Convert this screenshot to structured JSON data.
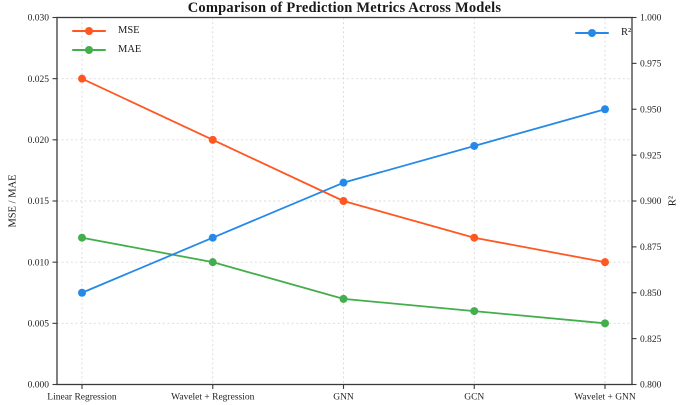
{
  "chart_data": {
    "type": "line",
    "title": "Comparison of Prediction Metrics Across Models",
    "categories": [
      "Linear Regression",
      "Wavelet + Regression",
      "GNN",
      "GCN",
      "Wavelet + GNN"
    ],
    "series": [
      {
        "name": "MSE",
        "axis": "left",
        "color": "#FF5722",
        "values": [
          0.025,
          0.02,
          0.015,
          0.012,
          0.01
        ]
      },
      {
        "name": "MAE",
        "axis": "left",
        "color": "#44AD4C",
        "values": [
          0.012,
          0.01,
          0.007,
          0.006,
          0.005
        ]
      },
      {
        "name": "R²",
        "axis": "right",
        "color": "#2489E8",
        "values": [
          0.85,
          0.88,
          0.91,
          0.93,
          0.95
        ]
      }
    ],
    "left_axis": {
      "label": "MSE / MAE",
      "min": 0.0,
      "max": 0.03,
      "tick_values": [
        0.0,
        0.005,
        0.01,
        0.015,
        0.02,
        0.025,
        0.03
      ],
      "tick_labels": [
        "0.000",
        "0.005",
        "0.010",
        "0.015",
        "0.020",
        "0.025",
        "0.030"
      ]
    },
    "right_axis": {
      "label": "R²",
      "min": 0.8,
      "max": 1.0,
      "tick_values": [
        0.8,
        0.825,
        0.85,
        0.875,
        0.9,
        0.925,
        0.95,
        0.975,
        1.0
      ],
      "tick_labels": [
        "0.800",
        "0.825",
        "0.850",
        "0.875",
        "0.900",
        "0.925",
        "0.950",
        "0.975",
        "1.000"
      ]
    },
    "grid": true,
    "legend_position_left": "upper left",
    "legend_position_right": "upper right",
    "styles": {
      "grid_color": "#d9d9d9",
      "spine_color": "#3b3b3b",
      "text_color": "#1f1f1f"
    }
  }
}
